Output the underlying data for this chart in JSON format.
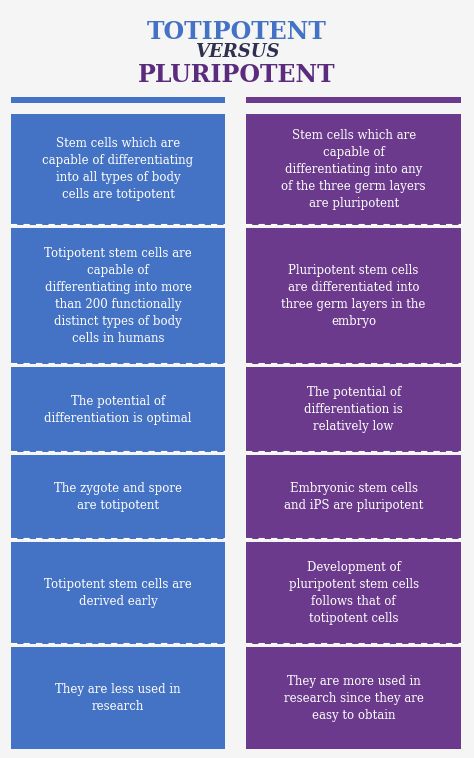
{
  "title_line1": "TOTIPOTENT",
  "title_line2": "VERSUS",
  "title_line3": "PLURIPOTENT",
  "title_color1": "#4472C4",
  "title_color2": "#2F2F4F",
  "title_color3": "#5B2C7E",
  "bg_color": "#F5F5F5",
  "left_color": "#4472C4",
  "right_color": "#6B3A8C",
  "text_color": "#FFFFFF",
  "rows": [
    {
      "left": "Stem cells which are\ncapable of differentiating\ninto all types of body\ncells are totipotent",
      "right": "Stem cells which are\ncapable of\ndifferentiating into any\nof the three germ layers\nare pluripotent"
    },
    {
      "left": "Totipotent stem cells are\ncapable of\ndifferentiating into more\nthan 200 functionally\ndistinct types of body\ncells in humans",
      "right": "Pluripotent stem cells\nare differentiated into\nthree germ layers in the\nembryo"
    },
    {
      "left": "The potential of\ndifferentiation is optimal",
      "right": "The potential of\ndifferentiation is\nrelatively low"
    },
    {
      "left": "The zygote and spore\nare totipotent",
      "right": "Embryonic stem cells\nand iPS are pluripotent"
    },
    {
      "left": "Totipotent stem cells are\nderived early",
      "right": "Development of\npluripotent stem cells\nfollows that of\ntotipotent cells"
    },
    {
      "left": "They are less used in\nresearch",
      "right": "They are more used in\nresearch since they are\neasy to obtain"
    }
  ]
}
